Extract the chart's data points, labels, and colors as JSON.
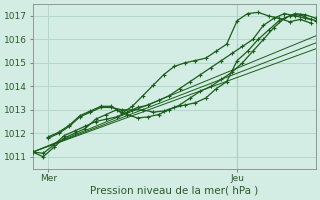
{
  "xlabel": "Pression niveau de la mer( hPa )",
  "bg_color": "#d4ede4",
  "grid_color": "#b0d8c8",
  "line_color": "#1a5c1a",
  "ylim": [
    1010.5,
    1017.5
  ],
  "xlim": [
    0,
    54
  ],
  "x_tick_pos": [
    3,
    39
  ],
  "x_tick_labels": [
    "Mer",
    "Jeu"
  ],
  "y_ticks": [
    1011,
    1012,
    1013,
    1014,
    1015,
    1016,
    1017
  ],
  "vline_x": 39,
  "series1_x": [
    0,
    2,
    4,
    6,
    8,
    10,
    12,
    14,
    16,
    18,
    20,
    22,
    24,
    26,
    28,
    30,
    32,
    34,
    36,
    38,
    40,
    42,
    44,
    46,
    48,
    50,
    52,
    54
  ],
  "series1_y": [
    1011.2,
    1011.15,
    1011.5,
    1011.9,
    1012.1,
    1012.3,
    1012.5,
    1012.6,
    1012.7,
    1012.9,
    1013.1,
    1013.2,
    1013.4,
    1013.6,
    1013.9,
    1014.2,
    1014.5,
    1014.8,
    1015.1,
    1015.4,
    1015.7,
    1016.0,
    1016.6,
    1016.9,
    1017.1,
    1017.0,
    1016.9,
    1016.8
  ],
  "series2_x": [
    0,
    2,
    4,
    6,
    8,
    10,
    12,
    14,
    16,
    18,
    20,
    22,
    24,
    26,
    28,
    30,
    32,
    34,
    36,
    38,
    40,
    42,
    44,
    46,
    48,
    50,
    52,
    54
  ],
  "series2_y": [
    1011.2,
    1011.0,
    1011.4,
    1011.8,
    1012.0,
    1012.2,
    1012.6,
    1012.8,
    1013.0,
    1012.8,
    1012.65,
    1012.7,
    1012.8,
    1013.0,
    1013.2,
    1013.5,
    1013.8,
    1014.0,
    1014.3,
    1014.6,
    1015.0,
    1015.5,
    1016.0,
    1016.5,
    1016.9,
    1017.1,
    1017.05,
    1016.9
  ],
  "series3_x": [
    3,
    5,
    7,
    9,
    11,
    13,
    15,
    17,
    19,
    21,
    23,
    25,
    27,
    29,
    31,
    33,
    35,
    37,
    39,
    41,
    43,
    45,
    47,
    49,
    51,
    53
  ],
  "series3_y": [
    1011.8,
    1012.0,
    1012.3,
    1012.7,
    1012.9,
    1013.1,
    1013.1,
    1013.0,
    1013.0,
    1013.0,
    1012.9,
    1012.95,
    1013.1,
    1013.2,
    1013.3,
    1013.5,
    1013.9,
    1014.2,
    1015.1,
    1015.5,
    1016.0,
    1016.4,
    1016.8,
    1017.0,
    1017.05,
    1016.85
  ],
  "series4_x": [
    3,
    5,
    7,
    9,
    11,
    13,
    15,
    17,
    19,
    21,
    23,
    25,
    27,
    29,
    31,
    33,
    35,
    37,
    39,
    41,
    43,
    45,
    47,
    49,
    51,
    53
  ],
  "series4_y": [
    1011.85,
    1012.05,
    1012.35,
    1012.75,
    1012.95,
    1013.15,
    1013.15,
    1012.85,
    1013.15,
    1013.6,
    1014.05,
    1014.5,
    1014.85,
    1015.0,
    1015.1,
    1015.2,
    1015.5,
    1015.8,
    1016.8,
    1017.1,
    1017.15,
    1017.0,
    1016.9,
    1016.75,
    1016.85,
    1016.7
  ],
  "trend1_x": [
    0,
    54
  ],
  "trend1_y": [
    1011.2,
    1015.85
  ],
  "trend2_x": [
    0,
    54
  ],
  "trend2_y": [
    1011.2,
    1016.15
  ],
  "trend3_x": [
    0,
    54
  ],
  "trend3_y": [
    1011.2,
    1015.6
  ]
}
